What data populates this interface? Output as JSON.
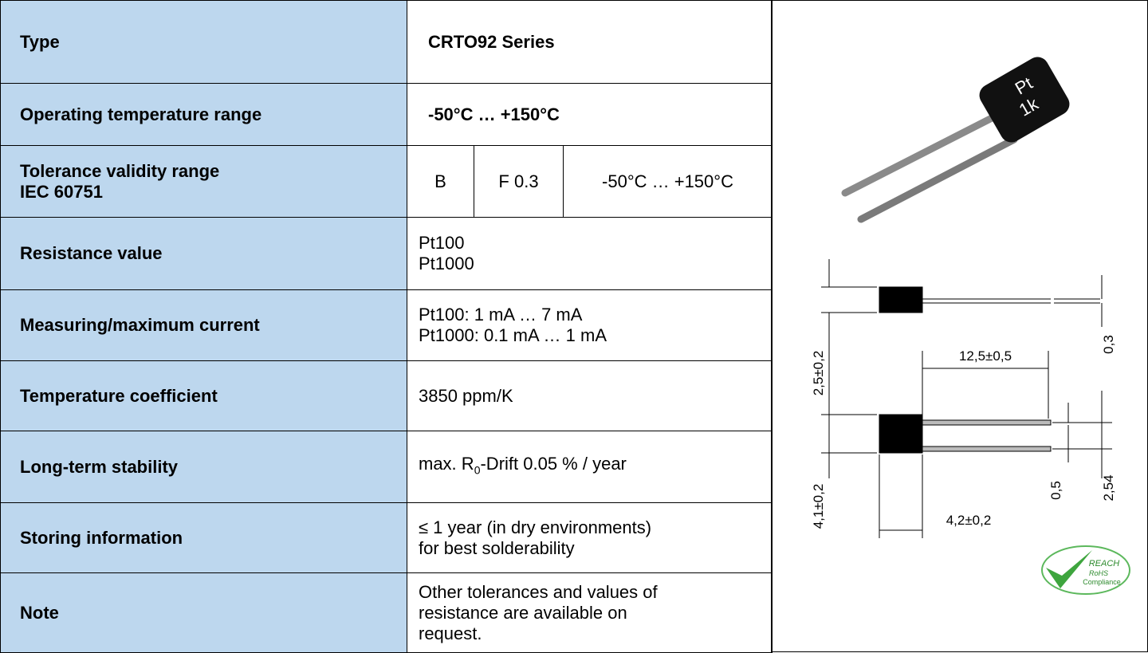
{
  "table": {
    "rows": [
      {
        "label": [
          "Type"
        ],
        "value": [
          "CRTO92 Series"
        ],
        "bold": true
      },
      {
        "label": [
          "Operating temperature range"
        ],
        "value": [
          "-50°C … +150°C"
        ],
        "bold": true
      },
      {
        "label": [
          "Tolerance validity range",
          "IEC 60751"
        ],
        "cells": [
          "B",
          "F 0.3",
          "-50°C … +150°C"
        ]
      },
      {
        "label": [
          "Resistance value"
        ],
        "value": [
          "Pt100",
          "Pt1000"
        ]
      },
      {
        "label": [
          "Measuring/maximum current"
        ],
        "value": [
          "Pt100: 1 mA … 7 mA",
          "Pt1000: 0.1 mA … 1 mA"
        ]
      },
      {
        "label": [
          "Temperature coefficient"
        ],
        "value": [
          "3850 ppm/K"
        ]
      },
      {
        "label": [
          "Long-term stability"
        ],
        "drift": {
          "prefix": "max. R",
          "subscript": "0",
          "suffix": "-Drift 0.05 % / year"
        }
      },
      {
        "label": [
          "Storing information"
        ],
        "value": [
          "≤ 1 year (in dry environments)",
          "for best solderability"
        ]
      },
      {
        "label": [
          "Note"
        ],
        "value": [
          "Other tolerances and values of",
          "resistance are available on",
          "request."
        ]
      }
    ]
  },
  "figure": {
    "marking": [
      "Pt",
      "1k"
    ],
    "dimensions": {
      "body_height": "2,5±0,2",
      "lead_length": "12,5±0,5",
      "lead_thickness": "0,3",
      "body_width": "4,1±0,2",
      "body_length": "4,2±0,2",
      "lead_width": "0,5",
      "pitch": "2,54"
    },
    "badge": [
      "REACH",
      "RoHS",
      "Compliance"
    ]
  }
}
